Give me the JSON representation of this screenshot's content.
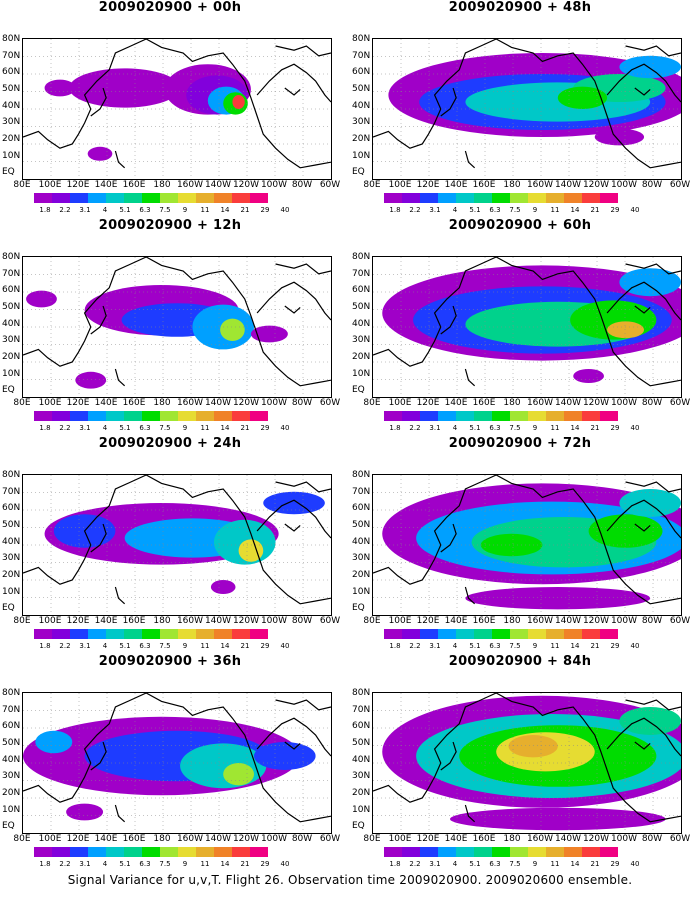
{
  "caption": "Signal Variance for u,v,T. Flight 26. Observation time 2009020900. 2009020600 ensemble.",
  "y_labels": [
    "80N",
    "70N",
    "60N",
    "50N",
    "40N",
    "30N",
    "20N",
    "10N",
    "EQ"
  ],
  "x_labels": [
    "80E",
    "100E",
    "120E",
    "140E",
    "160E",
    "180",
    "160W",
    "140W",
    "120W",
    "100W",
    "80W",
    "60W"
  ],
  "colorbar": {
    "labels": [
      "1.8",
      "2.2",
      "3.1",
      "4",
      "5.1",
      "6.3",
      "7.5",
      "9",
      "11",
      "14",
      "21",
      "29",
      "40"
    ],
    "colors": [
      "#a000c8",
      "#8200dc",
      "#1e3cff",
      "#00a0ff",
      "#00c8c8",
      "#00d28c",
      "#00dc00",
      "#a0e632",
      "#e6dc32",
      "#e6af2d",
      "#f08228",
      "#fa3c3c",
      "#f00082"
    ]
  },
  "panels": [
    {
      "title": "2009020900 + 00h"
    },
    {
      "title": "2009020900 + 48h"
    },
    {
      "title": "2009020900 + 12h"
    },
    {
      "title": "2009020900 + 60h"
    },
    {
      "title": "2009020900 + 24h"
    },
    {
      "title": "2009020900 + 72h"
    },
    {
      "title": "2009020900 + 36h"
    },
    {
      "title": "2009020900 + 84h"
    }
  ]
}
